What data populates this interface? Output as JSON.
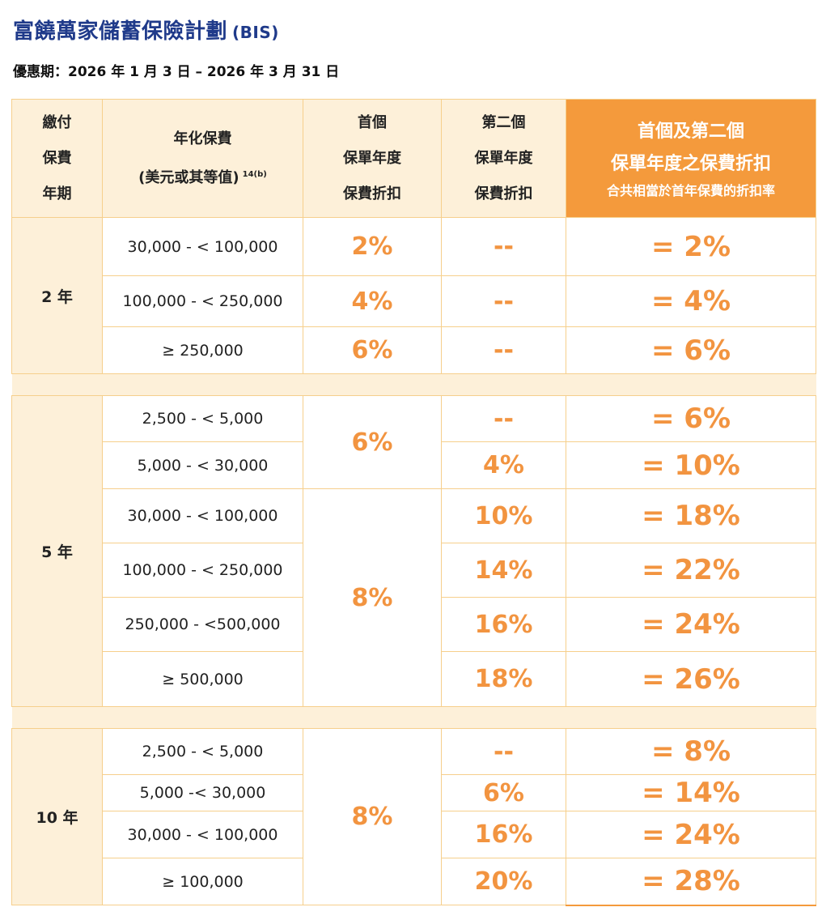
{
  "title": "富饒萬家儲蓄保險計劃",
  "title_code": "(BIS)",
  "period": "優惠期：2026 年 1 月 3 日 – 2026 年 3 月 31 日",
  "header": {
    "term": [
      "繳付",
      "保費",
      "年期"
    ],
    "premium_l1": "年化保費",
    "premium_l2": "(美元或其等值)",
    "premium_ref": "14(b)",
    "first": [
      "首個",
      "保單年度",
      "保費折扣"
    ],
    "second": [
      "第二個",
      "保單年度",
      "保費折扣"
    ],
    "combined_l1": "首個及第二個",
    "combined_l2": "保單年度之保費折扣",
    "combined_l3": "合共相當於首年保費的折扣率"
  },
  "groups": [
    {
      "term": "2 年",
      "rows": [
        {
          "premium": "30,000 - < 100,000",
          "first": "2%",
          "second": "--",
          "total": "= 2%"
        },
        {
          "premium": "100,000 - < 250,000",
          "first": "4%",
          "second": "--",
          "total": "= 4%"
        },
        {
          "premium": "≥ 250,000",
          "first": "6%",
          "second": "--",
          "total": "= 6%"
        }
      ]
    },
    {
      "term": "5 年",
      "first_merged": [
        "6%",
        "8%"
      ],
      "rows": [
        {
          "premium": "2,500 - < 5,000",
          "second": "--",
          "total": "= 6%"
        },
        {
          "premium": "5,000 - < 30,000",
          "second": "4%",
          "total": "= 10%"
        },
        {
          "premium": "30,000 - < 100,000",
          "second": "10%",
          "total": "= 18%"
        },
        {
          "premium": "100,000 - < 250,000",
          "second": "14%",
          "total": "= 22%"
        },
        {
          "premium": "250,000 - <500,000",
          "second": "16%",
          "total": "= 24%"
        },
        {
          "premium": "≥ 500,000",
          "second": "18%",
          "total": "= 26%"
        }
      ]
    },
    {
      "term": "10 年",
      "first_merged": [
        "8%"
      ],
      "rows": [
        {
          "premium": "2,500 - < 5,000",
          "second": "--",
          "total": "= 8%"
        },
        {
          "premium": "5,000 -< 30,000",
          "second": "6%",
          "total": "= 14%"
        },
        {
          "premium": "30,000 - < 100,000",
          "second": "16%",
          "total": "= 24%"
        },
        {
          "premium": "≥ 100,000",
          "second": "20%",
          "total": "= 28%"
        }
      ]
    }
  ]
}
